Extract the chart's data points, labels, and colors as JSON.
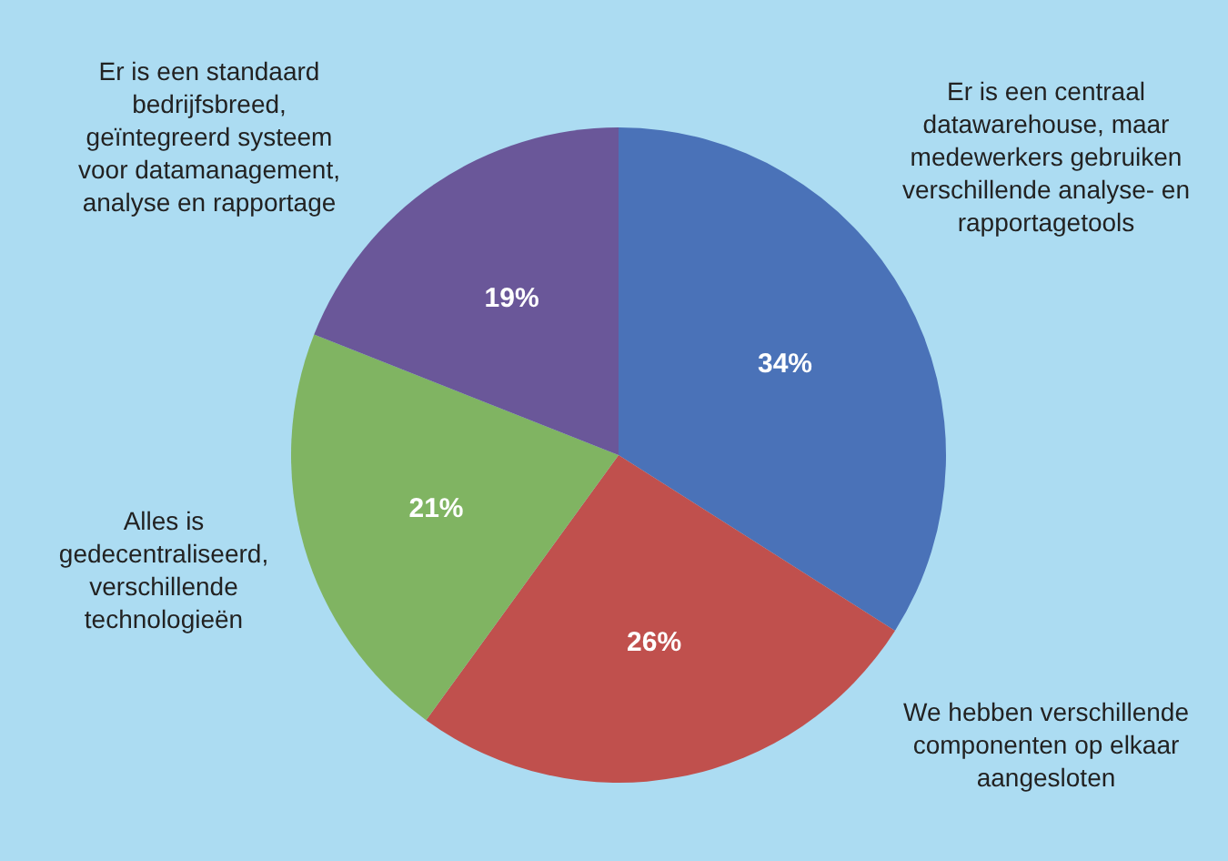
{
  "chart_data": {
    "type": "pie",
    "categories": [
      "Er is een centraal\ndatawarehouse, maar\nmedewerkers gebruiken\nverschillende analyse- en\nrapportagetools",
      "We hebben verschillende\ncomponenten op elkaar\naangesloten",
      "Alles is\ngedecentraliseerd,\nverschillende\ntechnologieën",
      "Er is een standaard\nbedrijfsbreed,\ngeïntegreerd systeem\nvoor datamanagement,\nanalyse en rapportage"
    ],
    "values": [
      34,
      26,
      21,
      19
    ],
    "colors": [
      "#4a72b8",
      "#c0504d",
      "#80b462",
      "#6a5799"
    ],
    "value_labels": [
      "34%",
      "26%",
      "21%",
      "19%"
    ]
  }
}
